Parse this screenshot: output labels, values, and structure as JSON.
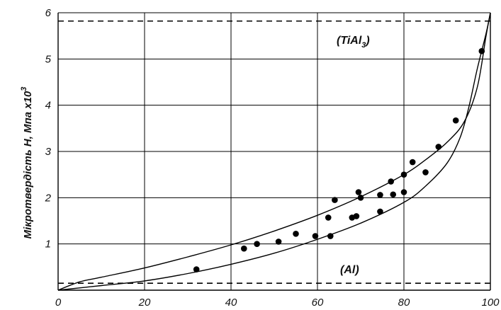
{
  "chart_data": {
    "type": "scatter",
    "ylabel": "Мікротвердість Н, Мпа х10",
    "ylabel_superscript": "3",
    "xlim": [
      0,
      100
    ],
    "ylim": [
      0,
      6
    ],
    "x_ticks": [
      "0",
      "20",
      "40",
      "60",
      "80",
      "100"
    ],
    "y_ticks": [
      "1",
      "2",
      "3",
      "4",
      "5",
      "6"
    ],
    "grid": true,
    "points": [
      {
        "x": 32,
        "y": 0.45
      },
      {
        "x": 43,
        "y": 0.9
      },
      {
        "x": 46,
        "y": 1.0
      },
      {
        "x": 51,
        "y": 1.05
      },
      {
        "x": 55,
        "y": 1.22
      },
      {
        "x": 59.5,
        "y": 1.17
      },
      {
        "x": 62.5,
        "y": 1.57
      },
      {
        "x": 63,
        "y": 1.17
      },
      {
        "x": 64,
        "y": 1.95
      },
      {
        "x": 68,
        "y": 1.57
      },
      {
        "x": 69,
        "y": 1.6
      },
      {
        "x": 69.5,
        "y": 2.12
      },
      {
        "x": 70,
        "y": 2.0
      },
      {
        "x": 74.5,
        "y": 1.7
      },
      {
        "x": 74.5,
        "y": 2.06
      },
      {
        "x": 77,
        "y": 2.35
      },
      {
        "x": 77.5,
        "y": 2.07
      },
      {
        "x": 80,
        "y": 2.5
      },
      {
        "x": 80,
        "y": 2.12
      },
      {
        "x": 82,
        "y": 2.77
      },
      {
        "x": 85,
        "y": 2.55
      },
      {
        "x": 88,
        "y": 3.1
      },
      {
        "x": 92,
        "y": 3.67
      },
      {
        "x": 98,
        "y": 5.17
      }
    ],
    "upper_bound": [
      [
        0,
        0
      ],
      [
        5,
        0.18
      ],
      [
        10,
        0.28
      ],
      [
        20,
        0.48
      ],
      [
        30,
        0.72
      ],
      [
        40,
        0.98
      ],
      [
        50,
        1.28
      ],
      [
        60,
        1.62
      ],
      [
        70,
        2.02
      ],
      [
        80,
        2.5
      ],
      [
        85,
        2.82
      ],
      [
        90,
        3.2
      ],
      [
        94,
        3.65
      ],
      [
        97,
        4.4
      ],
      [
        99,
        5.5
      ],
      [
        100,
        6.0
      ]
    ],
    "lower_bound": [
      [
        0,
        0
      ],
      [
        10,
        0.1
      ],
      [
        20,
        0.2
      ],
      [
        30,
        0.36
      ],
      [
        40,
        0.56
      ],
      [
        50,
        0.8
      ],
      [
        60,
        1.1
      ],
      [
        70,
        1.45
      ],
      [
        80,
        1.9
      ],
      [
        85,
        2.25
      ],
      [
        90,
        2.75
      ],
      [
        93,
        3.3
      ],
      [
        95,
        3.95
      ],
      [
        97,
        4.8
      ],
      [
        99,
        5.55
      ],
      [
        100,
        6.0
      ]
    ],
    "reference_lines": [
      {
        "label": "(TiAl3)",
        "label_main": "(TiAl",
        "label_sub": "3",
        "label_end": ")",
        "y": 5.82
      },
      {
        "label": "(Al)",
        "y": 0.15
      }
    ]
  }
}
